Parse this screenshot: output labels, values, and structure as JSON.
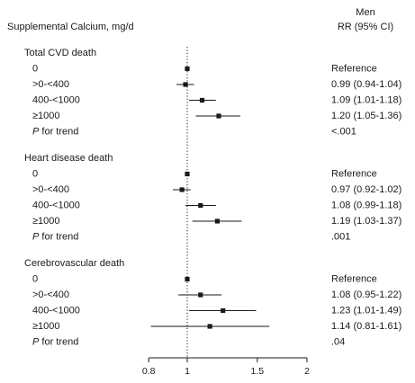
{
  "chart_data": {
    "type": "forest",
    "row_header": "Supplemental Calcium, mg/d",
    "column_header": [
      "Men",
      "RR (95% CI)"
    ],
    "x_axis": {
      "scale": "log",
      "ticks": [
        0.8,
        1,
        1.5,
        2
      ],
      "tick_labels": [
        "0.8",
        "1",
        "1.5",
        "2"
      ],
      "range": [
        0.8,
        2
      ],
      "reference_line": 1,
      "reference_style": "dotted"
    },
    "groups": [
      {
        "title": "Total CVD death",
        "rows": [
          {
            "label": "0",
            "rr": 1.0,
            "lo": null,
            "hi": null,
            "text": "Reference"
          },
          {
            "label": ">0-<400",
            "rr": 0.99,
            "lo": 0.94,
            "hi": 1.04,
            "text": "0.99 (0.94-1.04)"
          },
          {
            "label": "400-<1000",
            "rr": 1.09,
            "lo": 1.01,
            "hi": 1.18,
            "text": "1.09 (1.01-1.18)"
          },
          {
            "label": "≥1000",
            "rr": 1.2,
            "lo": 1.05,
            "hi": 1.36,
            "text": "1.20 (1.05-1.36)"
          }
        ],
        "trend": {
          "label_italic": "P",
          "label_rest": " for trend",
          "text": "<.001"
        }
      },
      {
        "title": "Heart disease death",
        "rows": [
          {
            "label": "0",
            "rr": 1.0,
            "lo": null,
            "hi": null,
            "text": "Reference"
          },
          {
            "label": ">0-<400",
            "rr": 0.97,
            "lo": 0.92,
            "hi": 1.02,
            "text": "0.97 (0.92-1.02)"
          },
          {
            "label": "400-<1000",
            "rr": 1.08,
            "lo": 0.99,
            "hi": 1.18,
            "text": "1.08 (0.99-1.18)"
          },
          {
            "label": "≥1000",
            "rr": 1.19,
            "lo": 1.03,
            "hi": 1.37,
            "text": "1.19 (1.03-1.37)"
          }
        ],
        "trend": {
          "label_italic": "P",
          "label_rest": " for trend",
          "text": ".001"
        }
      },
      {
        "title": "Cerebrovascular death",
        "rows": [
          {
            "label": "0",
            "rr": 1.0,
            "lo": null,
            "hi": null,
            "text": "Reference"
          },
          {
            "label": ">0-<400",
            "rr": 1.08,
            "lo": 0.95,
            "hi": 1.22,
            "text": "1.08 (0.95-1.22)"
          },
          {
            "label": "400-<1000",
            "rr": 1.23,
            "lo": 1.01,
            "hi": 1.49,
            "text": "1.23 (1.01-1.49)"
          },
          {
            "label": "≥1000",
            "rr": 1.14,
            "lo": 0.81,
            "hi": 1.61,
            "text": "1.14 (0.81-1.61)"
          }
        ],
        "trend": {
          "label_italic": "P",
          "label_rest": " for trend",
          "text": ".04"
        }
      }
    ]
  }
}
